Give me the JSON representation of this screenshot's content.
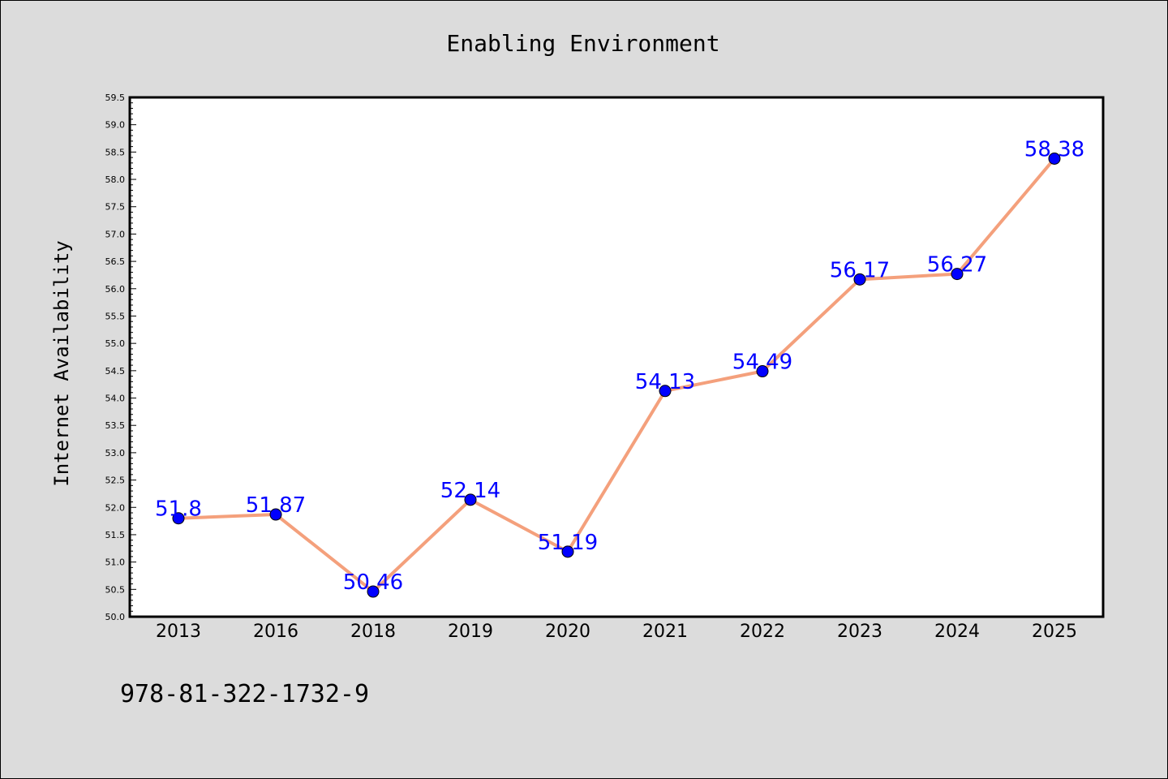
{
  "chart_data": {
    "type": "line",
    "title": "Enabling Environment",
    "xlabel": "",
    "ylabel": "Internet Availability",
    "categories": [
      "2013",
      "2016",
      "2018",
      "2019",
      "2020",
      "2021",
      "2022",
      "2023",
      "2024",
      "2025"
    ],
    "series": [
      {
        "values": [
          51.8,
          51.87,
          50.46,
          52.14,
          51.19,
          54.13,
          54.49,
          56.17,
          56.27,
          58.38
        ],
        "data_labels": [
          "51.8",
          "51.87",
          "50.46",
          "52.14",
          "51.19",
          "54.13",
          "54.49",
          "56.17",
          "56.27",
          "58.38"
        ]
      }
    ],
    "ylim": [
      50.0,
      59.5
    ],
    "yticks": [
      "50.0",
      "50.5",
      "51.0",
      "51.5",
      "52.0",
      "52.5",
      "53.0",
      "53.5",
      "54.0",
      "54.5",
      "55.0",
      "55.5",
      "56.0",
      "56.5",
      "57.0",
      "57.5",
      "58.0",
      "58.5",
      "59.0",
      "59.5"
    ],
    "grid": false,
    "legend": "none",
    "colors": {
      "line": "#f4a07c",
      "marker": "#0000ff",
      "label": "#0000ff",
      "plot_bg": "#ffffff",
      "page_bg": "#dcdcdc"
    }
  },
  "footer": {
    "isbn": "978-81-322-1732-9"
  }
}
